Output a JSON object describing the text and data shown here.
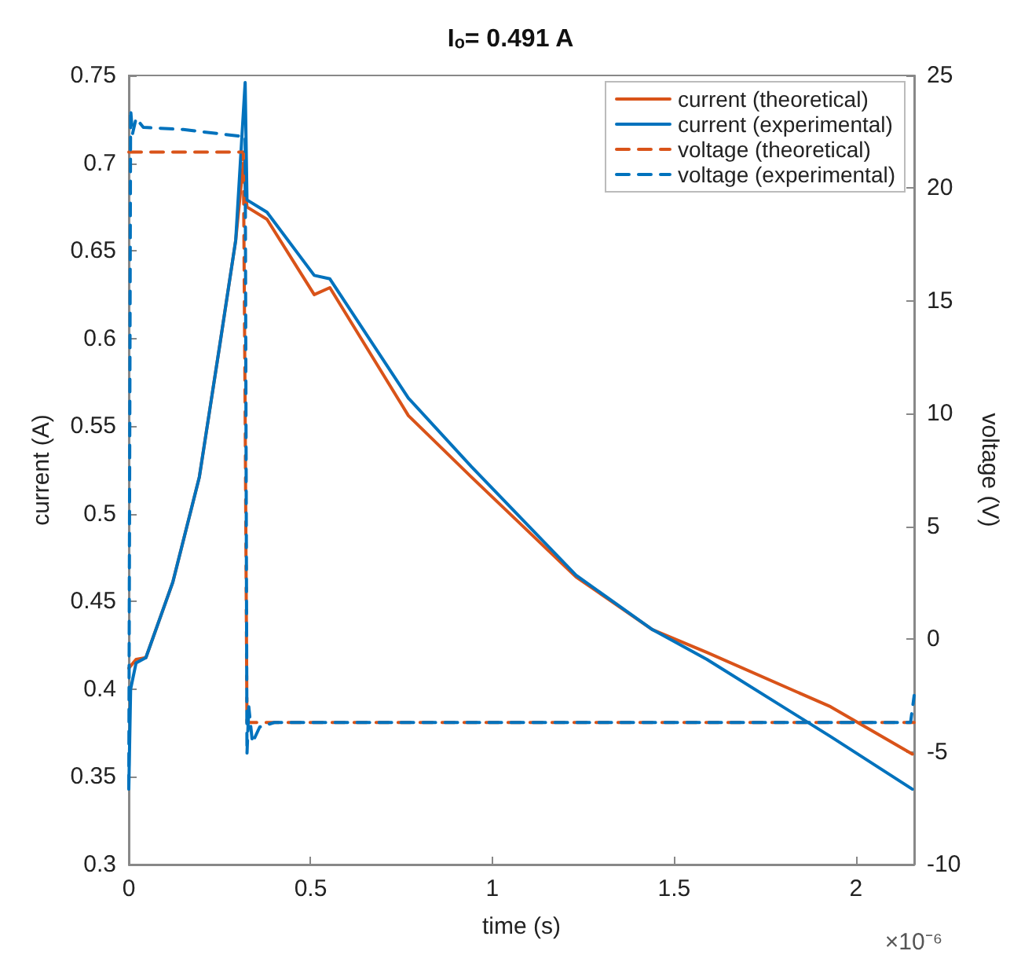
{
  "chart_data": {
    "type": "line",
    "title": "Iₒ= 0.491 A",
    "xlabel": "time (s)",
    "ylabel": "current (A)",
    "y2label": "voltage (V)",
    "annotations": [
      "×10⁻⁶"
    ],
    "series": [
      {
        "name": "current (theoretical)",
        "color": "#d95319",
        "line_style": "solid",
        "x": [
          0,
          0.02,
          0.047,
          0.121,
          0.194,
          0.25,
          0.294,
          0.315,
          0.325,
          0.38,
          0.51,
          0.553,
          0.769,
          0.942,
          1.23,
          1.44,
          1.59,
          1.93,
          2.155
        ],
        "values": [
          0.412,
          0.417,
          0.418,
          0.461,
          0.521,
          0.596,
          0.656,
          0.7,
          0.675,
          0.668,
          0.625,
          0.629,
          0.556,
          0.521,
          0.464,
          0.434,
          0.421,
          0.39,
          0.363
        ]
      },
      {
        "name": "current (experimental)",
        "color": "#0072bd",
        "line_style": "solid",
        "x": [
          0,
          0.005,
          0.02,
          0.047,
          0.121,
          0.194,
          0.25,
          0.294,
          0.32,
          0.325,
          0.38,
          0.51,
          0.553,
          0.769,
          0.942,
          1.23,
          1.44,
          1.59,
          1.93,
          2.155
        ],
        "values": [
          0.343,
          0.4,
          0.415,
          0.418,
          0.461,
          0.521,
          0.596,
          0.656,
          0.746,
          0.679,
          0.672,
          0.636,
          0.634,
          0.566,
          0.527,
          0.465,
          0.434,
          0.417,
          0.373,
          0.343
        ]
      },
      {
        "name": "voltage (theoretical)",
        "color": "#d95319",
        "line_style": "dashed",
        "axis": "y2",
        "x": [
          0,
          0.315,
          0.32,
          0.325,
          2.16
        ],
        "values": [
          21.6,
          21.6,
          10,
          -3.7,
          -3.7
        ]
      },
      {
        "name": "voltage (experimental)",
        "color": "#0072bd",
        "line_style": "dashed",
        "axis": "y2",
        "x": [
          0,
          0.005,
          0.01,
          0.02,
          0.04,
          0.15,
          0.31,
          0.32,
          0.325,
          0.33,
          0.34,
          0.36,
          0.4,
          1.0,
          2.15,
          2.16
        ],
        "values": [
          -6.6,
          23.5,
          22.4,
          23.1,
          22.7,
          22.6,
          22.3,
          22.3,
          -5.1,
          -3.0,
          -4.6,
          -3.9,
          -3.7,
          -3.7,
          -3.7,
          -2.5
        ]
      }
    ],
    "xlim": [
      0,
      2.16
    ],
    "xticks": [
      0,
      0.5,
      1,
      1.5,
      2
    ],
    "ylim": [
      0.3,
      0.75
    ],
    "yticks": [
      0.3,
      0.35,
      0.4,
      0.45,
      0.5,
      0.55,
      0.6,
      0.65,
      0.7,
      0.75
    ],
    "y2lim": [
      -10,
      25
    ],
    "y2ticks": [
      -10,
      -5,
      0,
      5,
      10,
      15,
      20,
      25
    ],
    "legend": "top right"
  }
}
